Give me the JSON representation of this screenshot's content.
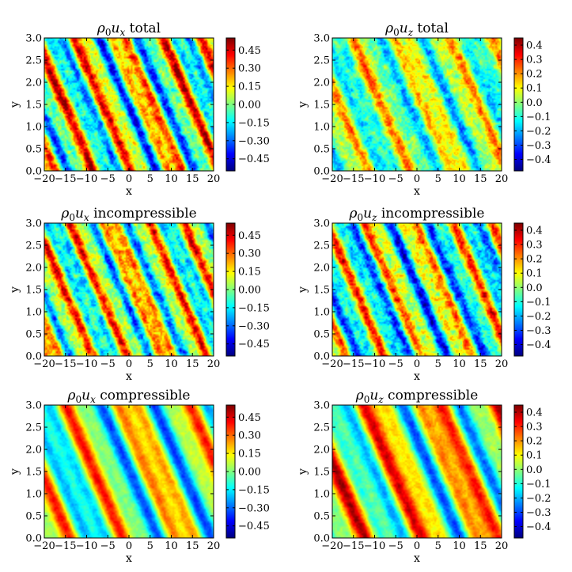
{
  "chart_data": [
    {
      "type": "heatmap",
      "title_sym": "ρ",
      "title_sub1": "0",
      "title_var": "u",
      "title_sub2": "x",
      "title_suffix": "total",
      "xlabel": "x",
      "ylabel": "y",
      "xlim": [
        -20,
        20
      ],
      "ylim": [
        0.0,
        3.0
      ],
      "xticks": [
        "−20",
        "−15",
        "−10",
        "−5",
        "0",
        "5",
        "10",
        "15",
        "20"
      ],
      "yticks": [
        "0.0",
        "0.5",
        "1.0",
        "1.5",
        "2.0",
        "2.5",
        "3.0"
      ],
      "colorbar_ticks": [
        "0.45",
        "0.30",
        "0.15",
        "0.00",
        "−0.15",
        "−0.30",
        "−0.45"
      ],
      "colorbar_range": [
        -0.55,
        0.55
      ],
      "colormap": "jet",
      "field": {
        "slope": -0.1,
        "wavelength": 10,
        "amplitude": 0.3,
        "phase": 0.8,
        "noise": 0.18,
        "bias": 0.04
      }
    },
    {
      "type": "heatmap",
      "title_sym": "ρ",
      "title_sub1": "0",
      "title_var": "u",
      "title_sub2": "z",
      "title_suffix": "total",
      "xlabel": "x",
      "ylabel": "y",
      "xlim": [
        -20,
        20
      ],
      "ylim": [
        0.0,
        3.0
      ],
      "xticks": [
        "−20",
        "−15",
        "−10",
        "−5",
        "0",
        "5",
        "10",
        "15",
        "20"
      ],
      "yticks": [
        "0.0",
        "0.5",
        "1.0",
        "1.5",
        "2.0",
        "2.5",
        "3.0"
      ],
      "colorbar_ticks": [
        "0.4",
        "0.3",
        "0.2",
        "0.1",
        "0.0",
        "−0.1",
        "−0.2",
        "−0.3",
        "−0.4"
      ],
      "colorbar_range": [
        -0.48,
        0.45
      ],
      "colormap": "jet",
      "field": {
        "slope": -0.1,
        "wavelength": 11,
        "amplitude": 0.16,
        "phase": 2.4,
        "noise": 0.14,
        "bias": 0.0
      }
    },
    {
      "type": "heatmap",
      "title_sym": "ρ",
      "title_sub1": "0",
      "title_var": "u",
      "title_sub2": "x",
      "title_suffix": "incompressible",
      "xlabel": "x",
      "ylabel": "y",
      "xlim": [
        -20,
        20
      ],
      "ylim": [
        0.0,
        3.0
      ],
      "xticks": [
        "−20",
        "−15",
        "−10",
        "−5",
        "0",
        "5",
        "10",
        "15",
        "20"
      ],
      "yticks": [
        "0.0",
        "0.5",
        "1.0",
        "1.5",
        "2.0",
        "2.5",
        "3.0"
      ],
      "colorbar_ticks": [
        "0.45",
        "0.30",
        "0.15",
        "0.00",
        "−0.15",
        "−0.30",
        "−0.45"
      ],
      "colorbar_range": [
        -0.55,
        0.55
      ],
      "colormap": "jet",
      "field": {
        "slope": -0.1,
        "wavelength": 9,
        "amplitude": 0.26,
        "phase": 1.6,
        "noise": 0.18,
        "bias": 0.05
      }
    },
    {
      "type": "heatmap",
      "title_sym": "ρ",
      "title_sub1": "0",
      "title_var": "u",
      "title_sub2": "z",
      "title_suffix": "incompressible",
      "xlabel": "x",
      "ylabel": "y",
      "xlim": [
        -20,
        20
      ],
      "ylim": [
        0.0,
        3.0
      ],
      "xticks": [
        "−20",
        "−15",
        "−10",
        "−5",
        "0",
        "5",
        "10",
        "15",
        "20"
      ],
      "yticks": [
        "0.0",
        "0.5",
        "1.0",
        "1.5",
        "2.0",
        "2.5",
        "3.0"
      ],
      "colorbar_ticks": [
        "0.4",
        "0.3",
        "0.2",
        "0.1",
        "0.0",
        "−0.1",
        "−0.2",
        "−0.3",
        "−0.4"
      ],
      "colorbar_range": [
        -0.48,
        0.45
      ],
      "colormap": "jet",
      "field": {
        "slope": -0.1,
        "wavelength": 10,
        "amplitude": 0.24,
        "phase": 0.3,
        "noise": 0.16,
        "bias": -0.03
      }
    },
    {
      "type": "heatmap",
      "title_sym": "ρ",
      "title_sub1": "0",
      "title_var": "u",
      "title_sub2": "x",
      "title_suffix": "compressible",
      "xlabel": "x",
      "ylabel": "y",
      "xlim": [
        -20,
        20
      ],
      "ylim": [
        0.0,
        3.0
      ],
      "xticks": [
        "−20",
        "−15",
        "−10",
        "−5",
        "0",
        "5",
        "10",
        "15",
        "20"
      ],
      "yticks": [
        "0.0",
        "0.5",
        "1.0",
        "1.5",
        "2.0",
        "2.5",
        "3.0"
      ],
      "colorbar_ticks": [
        "0.45",
        "0.30",
        "0.15",
        "0.00",
        "−0.15",
        "−0.30",
        "−0.45"
      ],
      "colorbar_range": [
        -0.55,
        0.55
      ],
      "colormap": "jet",
      "field": {
        "slope": -0.12,
        "wavelength": 14,
        "amplitude": 0.26,
        "phase": 2.0,
        "noise": 0.06,
        "bias": 0.03
      }
    },
    {
      "type": "heatmap",
      "title_sym": "ρ",
      "title_sub1": "0",
      "title_var": "u",
      "title_sub2": "z",
      "title_suffix": "compressible",
      "xlabel": "x",
      "ylabel": "y",
      "xlim": [
        -20,
        20
      ],
      "ylim": [
        0.0,
        3.0
      ],
      "xticks": [
        "−20",
        "−15",
        "−10",
        "−5",
        "0",
        "5",
        "10",
        "15",
        "20"
      ],
      "yticks": [
        "0.0",
        "0.5",
        "1.0",
        "1.5",
        "2.0",
        "2.5",
        "3.0"
      ],
      "colorbar_ticks": [
        "0.4",
        "0.3",
        "0.2",
        "0.1",
        "0.0",
        "−0.1",
        "−0.2",
        "−0.3",
        "−0.4"
      ],
      "colorbar_range": [
        -0.48,
        0.45
      ],
      "colormap": "jet",
      "field": {
        "slope": -0.12,
        "wavelength": 15,
        "amplitude": 0.24,
        "phase": 0.6,
        "noise": 0.06,
        "bias": 0.06
      }
    }
  ]
}
